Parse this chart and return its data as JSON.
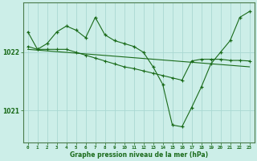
{
  "bg_color": "#cceee8",
  "grid_color": "#aad8d2",
  "line_color": "#1a6b1a",
  "text_color": "#1a6b1a",
  "xlabel": "Graphe pression niveau de la mer (hPa)",
  "ylabel_ticks": [
    1021,
    1022
  ],
  "xlim": [
    -0.5,
    23.5
  ],
  "ylim": [
    1020.45,
    1022.85
  ],
  "series1_x": [
    0,
    1,
    2,
    3,
    4,
    5,
    6,
    7,
    8,
    9,
    10,
    11,
    12,
    13,
    14,
    15,
    16,
    17,
    18,
    19,
    20,
    21,
    22,
    23
  ],
  "series1_y": [
    1022.35,
    1022.05,
    1022.15,
    1022.35,
    1022.45,
    1022.38,
    1022.25,
    1022.6,
    1022.3,
    1022.2,
    1022.15,
    1022.1,
    1022.0,
    1021.75,
    1021.45,
    1020.75,
    1020.72,
    1021.05,
    1021.4,
    1021.8,
    1022.0,
    1022.2,
    1022.6,
    1022.7
  ],
  "series2_x": [
    0,
    1,
    2,
    3,
    4,
    5,
    6,
    7,
    8,
    9,
    10,
    11,
    12,
    13,
    14,
    15,
    16,
    17,
    18,
    19,
    20,
    21,
    22,
    23
  ],
  "series2_y": [
    1022.1,
    1022.05,
    1022.05,
    1022.05,
    1022.05,
    1022.0,
    1021.95,
    1021.9,
    1021.85,
    1021.8,
    1021.75,
    1021.72,
    1021.68,
    1021.64,
    1021.6,
    1021.56,
    1021.52,
    1021.85,
    1021.88,
    1021.88,
    1021.88,
    1021.86,
    1021.86,
    1021.85
  ],
  "series3_x": [
    0,
    23
  ],
  "series3_y": [
    1022.05,
    1021.75
  ],
  "xticks": [
    0,
    1,
    2,
    3,
    4,
    5,
    6,
    7,
    8,
    9,
    10,
    11,
    12,
    13,
    14,
    15,
    16,
    17,
    18,
    19,
    20,
    21,
    22,
    23
  ]
}
